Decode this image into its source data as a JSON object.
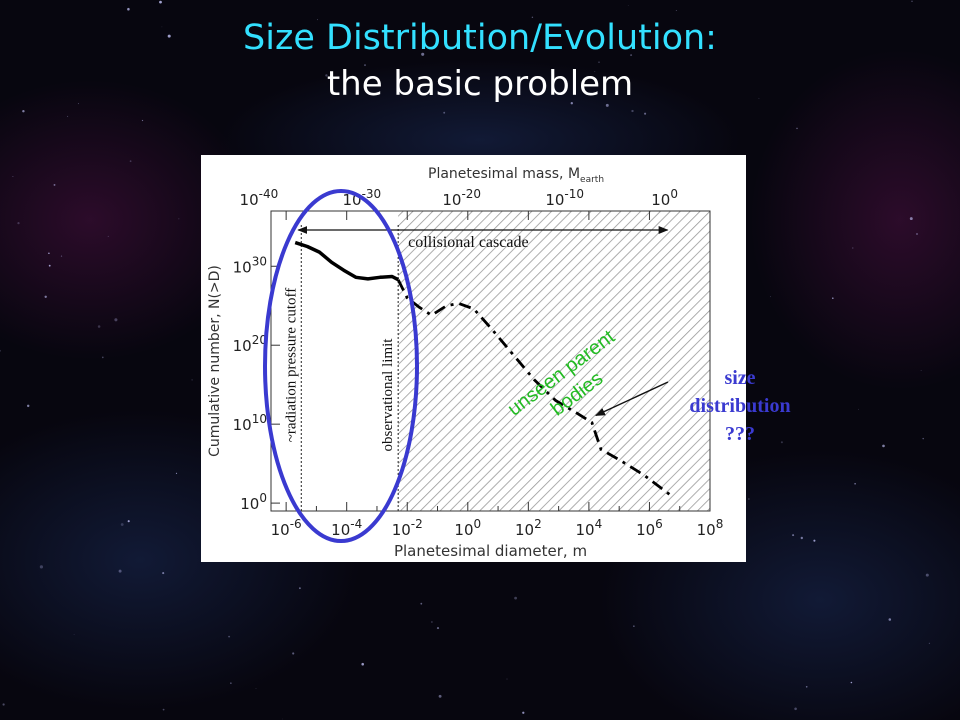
{
  "slide": {
    "title": "Size Distribution/Evolution:",
    "subtitle": "the basic problem",
    "colors": {
      "title": "#33e0ff",
      "subtitle": "#ffffff",
      "background": "#07060f",
      "circle": "#3a3ad0",
      "green_label": "#22bb22",
      "annotation": "#3a3ad0"
    }
  },
  "chart_data": {
    "type": "line",
    "top_axis_label": "Planetesimal mass, M",
    "top_axis_label_sub": "earth",
    "top_ticks": [
      {
        "exp": "-40",
        "log_d": -6.9
      },
      {
        "exp": "-30",
        "log_d": -3.5
      },
      {
        "exp": "-20",
        "log_d": -0.2
      },
      {
        "exp": "-10",
        "log_d": 3.2
      },
      {
        "exp": "0",
        "log_d": 6.5
      }
    ],
    "xlabel": "Planetesimal diameter, m",
    "x_scale": "log",
    "x_ticks": [
      {
        "exp": "-6",
        "log_d": -6
      },
      {
        "exp": "-4",
        "log_d": -4
      },
      {
        "exp": "-2",
        "log_d": -2
      },
      {
        "exp": "0",
        "log_d": 0
      },
      {
        "exp": "2",
        "log_d": 2
      },
      {
        "exp": "4",
        "log_d": 4
      },
      {
        "exp": "6",
        "log_d": 6
      },
      {
        "exp": "8",
        "log_d": 8
      }
    ],
    "xlim_exp": [
      -6.5,
      8
    ],
    "ylabel": "Cumulative number, N(>D)",
    "y_scale": "log",
    "y_ticks": [
      {
        "exp": "0",
        "log_n": 0
      },
      {
        "exp": "10",
        "log_n": 10
      },
      {
        "exp": "20",
        "log_n": 20
      },
      {
        "exp": "30",
        "log_n": 30
      }
    ],
    "ylim_exp": [
      -1,
      37
    ],
    "observed_series": {
      "style": "solid",
      "log_d": [
        -5.7,
        -5.3,
        -4.9,
        -4.5,
        -4.1,
        -3.7,
        -3.3,
        -2.9,
        -2.5,
        -2.3
      ],
      "log_n": [
        33.0,
        32.5,
        31.8,
        30.5,
        29.5,
        28.6,
        28.4,
        28.6,
        28.7,
        28.3
      ]
    },
    "inferred_series": {
      "style": "dash-dot",
      "log_d": [
        -2.3,
        -2.0,
        -1.6,
        -1.2,
        -0.7,
        -0.3,
        0.2,
        0.8,
        1.5,
        2.2,
        2.9,
        3.6,
        4.1,
        4.4,
        5.0,
        5.8,
        6.7
      ],
      "log_n": [
        28.3,
        26.0,
        24.8,
        23.8,
        25.0,
        25.3,
        24.6,
        22.0,
        18.8,
        15.6,
        13.0,
        11.4,
        10.2,
        6.8,
        5.5,
        3.6,
        1.0
      ]
    },
    "vertical_lines": [
      {
        "label": "~radiation pressure cutoff",
        "log_d": -5.5
      },
      {
        "label": "observational limit",
        "log_d": -2.3
      }
    ],
    "hatched_region": {
      "log_d": [
        -2.3,
        8
      ]
    },
    "cascade_arrow": {
      "label": "collisional cascade",
      "log_d": [
        -5.6,
        6.6
      ]
    },
    "green_label_lines": [
      "unseen parent",
      "bodies"
    ],
    "size_annotation_lines": [
      "size",
      "distribution",
      "???"
    ],
    "pointer_arrow": {
      "to_log_d": 4.1,
      "to_log_n": 10.6
    }
  }
}
